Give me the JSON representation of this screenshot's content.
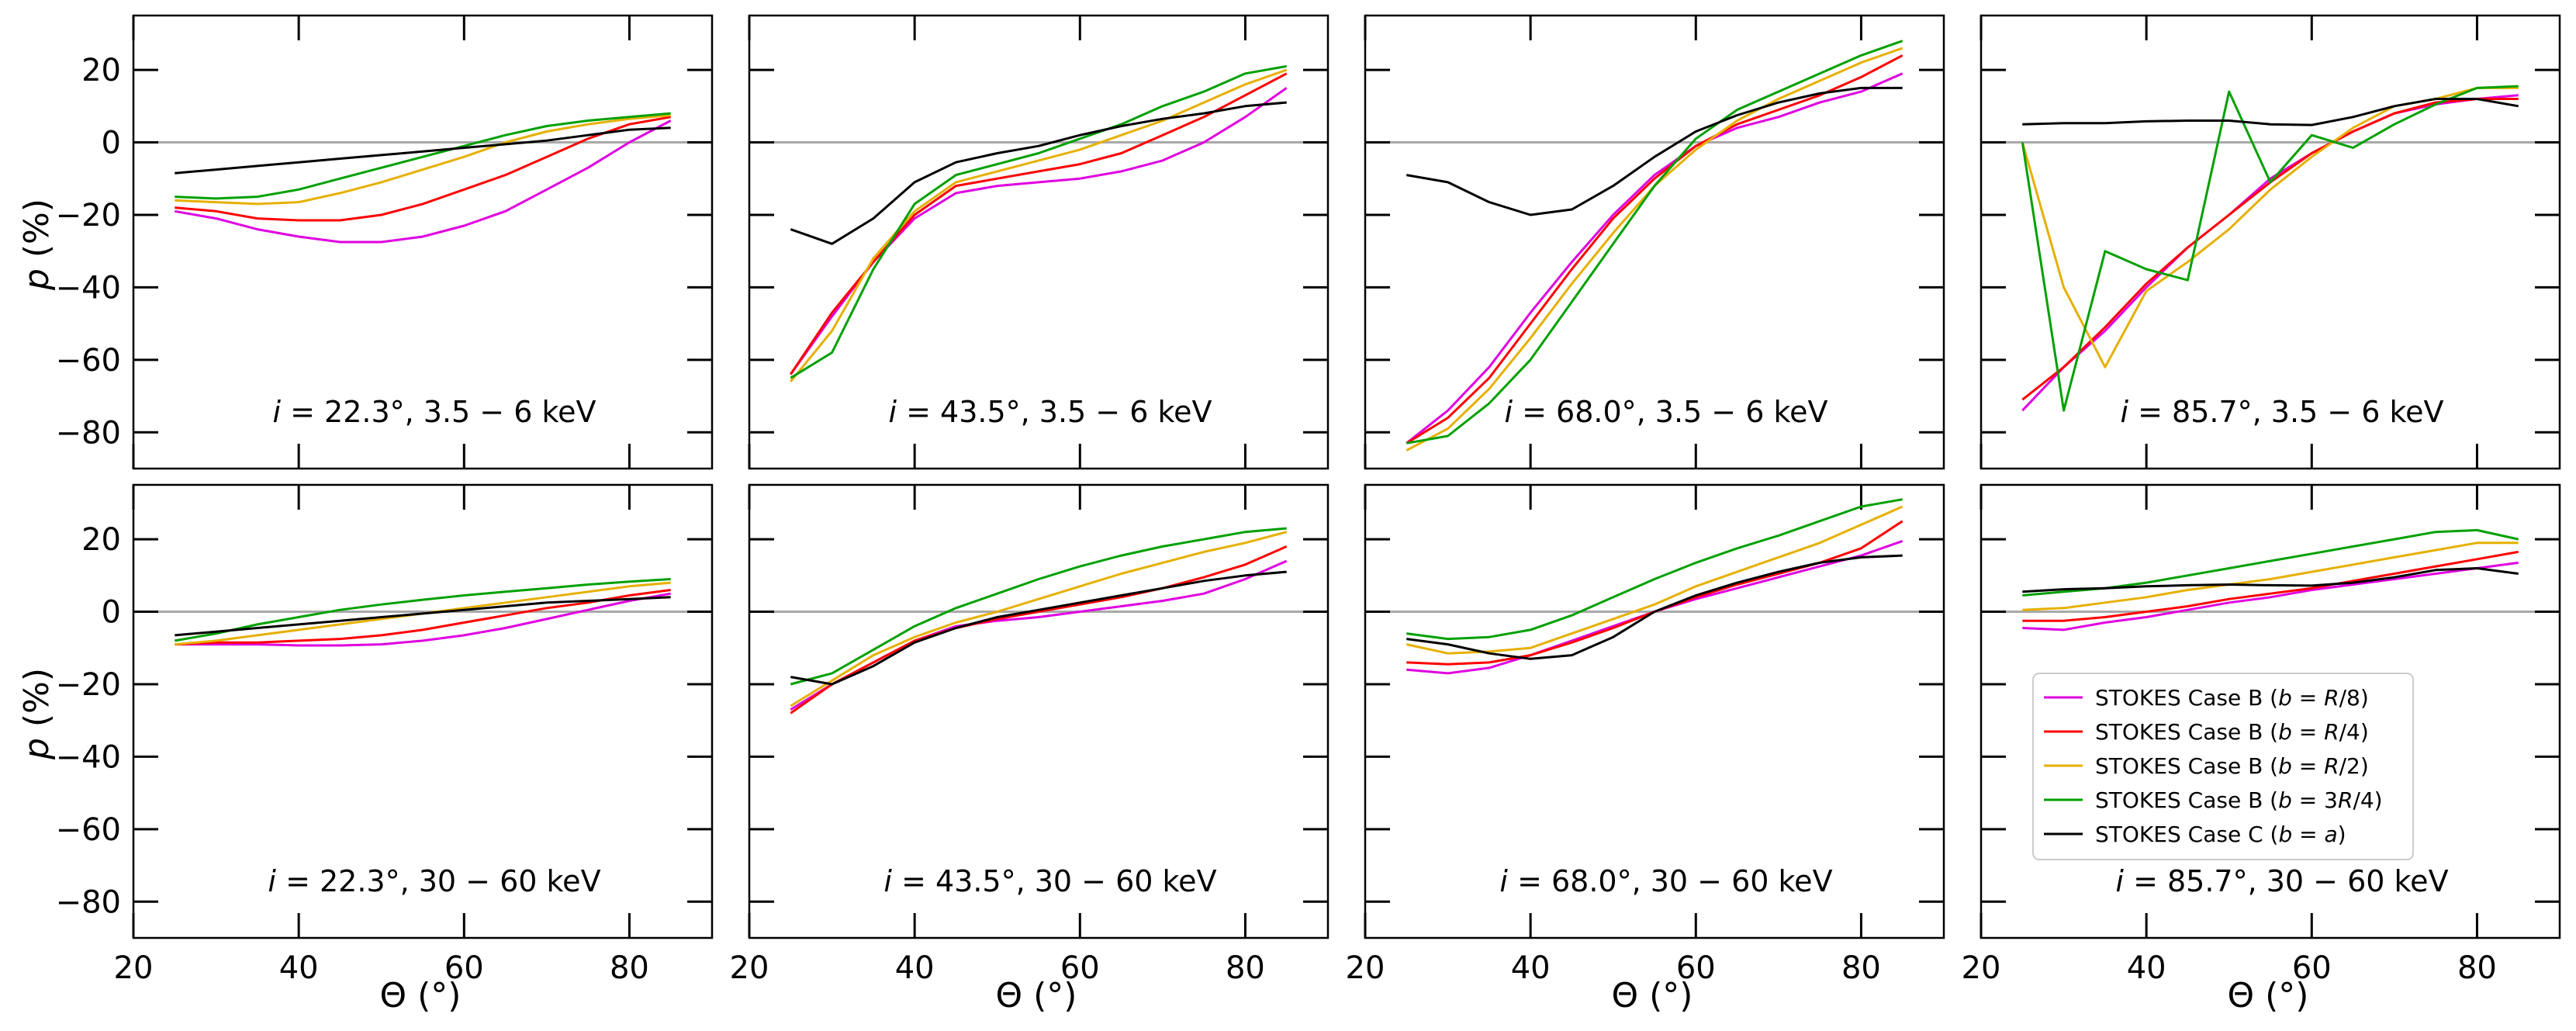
{
  "figure": {
    "ylabel": "p (%)",
    "xlabel": "Θ (°)"
  },
  "chart_data": {
    "type": "line",
    "x": [
      25,
      30,
      35,
      40,
      45,
      50,
      55,
      60,
      65,
      70,
      75,
      80,
      85
    ],
    "xlim": [
      20,
      90
    ],
    "ylim": [
      -90,
      35
    ],
    "xticks": [
      20,
      40,
      60,
      80
    ],
    "yticks": [
      -80,
      -60,
      -40,
      -20,
      0,
      20
    ],
    "xlabel": "Θ (°)",
    "ylabel": "p (%)",
    "series_meta": [
      {
        "name": "STOKES Case B (b = R/8)",
        "prefix": "STOKES Case B (",
        "var": "b",
        "eq": " = ",
        "val": "R",
        "suffix": "/8)",
        "color": "#e000e0"
      },
      {
        "name": "STOKES Case B (b = R/4)",
        "prefix": "STOKES Case B (",
        "var": "b",
        "eq": " = ",
        "val": "R",
        "suffix": "/4)",
        "color": "#ff0000"
      },
      {
        "name": "STOKES Case B (b = R/2)",
        "prefix": "STOKES Case B (",
        "var": "b",
        "eq": " = ",
        "val": "R",
        "suffix": "/2)",
        "color": "#e6b000"
      },
      {
        "name": "STOKES Case B (b = 3R/4)",
        "prefix": "STOKES Case B (",
        "var": "b",
        "eq": " = 3",
        "val": "R",
        "suffix": "/4)",
        "color": "#00a000"
      },
      {
        "name": "STOKES Case C (b = a)",
        "prefix": "STOKES Case C (",
        "var": "b",
        "eq": " = ",
        "val": "a",
        "suffix": ")",
        "color": "#000000"
      }
    ],
    "panels": [
      {
        "inclination": "22.3",
        "band": "3.5 − 6 keV",
        "label": "i = 22.3°, 3.5 − 6 keV",
        "series": [
          [
            -19,
            -21,
            -24,
            -26,
            -27.5,
            -27.5,
            -26,
            -23,
            -19,
            -13,
            -7,
            0,
            6
          ],
          [
            -18,
            -19,
            -21,
            -21.5,
            -21.5,
            -20,
            -17,
            -13,
            -9,
            -4,
            1,
            5,
            7
          ],
          [
            -16,
            -16.5,
            -17,
            -16.5,
            -14,
            -11,
            -7.5,
            -4,
            0,
            3,
            5,
            6.5,
            7.5
          ],
          [
            -15,
            -15.5,
            -15,
            -13,
            -10,
            -7,
            -4,
            -1,
            2,
            4.5,
            6,
            7,
            8
          ],
          [
            -8.5,
            -7.5,
            -6.5,
            -5.5,
            -4.5,
            -3.5,
            -2.5,
            -1.5,
            -0.5,
            0.5,
            2,
            3.5,
            4
          ]
        ]
      },
      {
        "inclination": "43.5",
        "band": "3.5 − 6 keV",
        "label": "i = 43.5°, 3.5 − 6 keV",
        "series": [
          [
            -64,
            -48,
            -33,
            -21,
            -14,
            -12,
            -11,
            -10,
            -8,
            -5,
            0,
            7,
            15
          ],
          [
            -64,
            -47,
            -33,
            -20,
            -12,
            -10,
            -8,
            -6,
            -3,
            2,
            7,
            13,
            19
          ],
          [
            -66,
            -52,
            -32,
            -19,
            -11,
            -8,
            -5,
            -2,
            2,
            6,
            11,
            16,
            20
          ],
          [
            -65,
            -58,
            -35,
            -17,
            -9,
            -6,
            -3,
            1,
            5,
            10,
            14,
            19,
            21
          ],
          [
            -24,
            -28,
            -21,
            -11,
            -5.5,
            -3,
            -1,
            2,
            4.5,
            6.5,
            8,
            10,
            11
          ]
        ]
      },
      {
        "inclination": "68.0",
        "band": "3.5 − 6 keV",
        "label": "i = 68.0°, 3.5 − 6 keV",
        "series": [
          [
            -83,
            -74,
            -62,
            -47,
            -33,
            -20,
            -9,
            -1,
            4,
            7,
            11,
            14,
            19
          ],
          [
            -83,
            -76,
            -65,
            -50,
            -35,
            -21,
            -10,
            -1,
            5,
            9,
            13,
            18,
            24
          ],
          [
            -85,
            -79,
            -68,
            -54,
            -39,
            -25,
            -12,
            -2,
            6,
            12,
            17,
            22,
            26
          ],
          [
            -83,
            -81,
            -72,
            -60,
            -44,
            -28,
            -12,
            1,
            9,
            14,
            19,
            24,
            28
          ],
          [
            -9,
            -11,
            -16.5,
            -20,
            -18.5,
            -12,
            -4,
            3,
            7.5,
            11,
            13.5,
            15,
            15
          ]
        ]
      },
      {
        "inclination": "85.7",
        "band": "3.5 − 6 keV",
        "label": "i = 85.7°, 3.5 − 6 keV",
        "series": [
          [
            -74,
            -62,
            -52,
            -40,
            -29,
            -20,
            -10,
            -3,
            3,
            8,
            10.5,
            12,
            13
          ],
          [
            -71,
            -62,
            -51,
            -39,
            -29,
            -20,
            -11,
            -3,
            3,
            8,
            11,
            12,
            12
          ],
          [
            0,
            -40,
            -62,
            -41,
            -33,
            -24,
            -13,
            -4,
            4,
            10,
            12,
            15,
            15
          ],
          [
            0,
            -74,
            -30,
            -35,
            -38,
            14,
            -11,
            2,
            -1.5,
            5,
            10.5,
            15,
            15.5
          ],
          [
            5,
            5.3,
            5.3,
            5.8,
            6,
            6,
            5,
            4.8,
            7,
            10,
            12,
            12,
            10
          ]
        ]
      },
      {
        "inclination": "22.3",
        "band": "30 − 60 keV",
        "label": "i = 22.3°, 30 − 60 keV",
        "series": [
          [
            -9,
            -9,
            -9,
            -9.3,
            -9.3,
            -9,
            -8,
            -6.5,
            -4.5,
            -2,
            0.5,
            3,
            5
          ],
          [
            -9,
            -8.5,
            -8.5,
            -8,
            -7.5,
            -6.5,
            -5,
            -3,
            -1,
            1,
            2.5,
            4.5,
            6
          ],
          [
            -9,
            -8,
            -6.5,
            -5,
            -3.5,
            -2,
            -0.5,
            1,
            2.5,
            4,
            5.5,
            7,
            8
          ],
          [
            -8,
            -6,
            -3.5,
            -1.5,
            0.5,
            2,
            3.3,
            4.5,
            5.5,
            6.5,
            7.5,
            8.3,
            9
          ],
          [
            -6.5,
            -5.5,
            -4.5,
            -3.5,
            -2.5,
            -1.5,
            -0.5,
            0.5,
            1.5,
            2.5,
            3,
            3.5,
            4
          ]
        ]
      },
      {
        "inclination": "43.5",
        "band": "30 − 60 keV",
        "label": "i = 43.5°, 30 − 60 keV",
        "series": [
          [
            -27,
            -20,
            -14,
            -8,
            -4,
            -2.5,
            -1.5,
            0,
            1.5,
            3,
            5,
            9,
            14
          ],
          [
            -28,
            -20,
            -14,
            -8,
            -4.5,
            -2,
            0,
            2,
            4,
            6.5,
            9.5,
            13,
            18
          ],
          [
            -26,
            -19,
            -12,
            -7,
            -3,
            0,
            3.5,
            7,
            10.5,
            13.5,
            16.5,
            19,
            22
          ],
          [
            -20,
            -17,
            -10.5,
            -4,
            1,
            5,
            9,
            12.5,
            15.5,
            18,
            20,
            22,
            23
          ],
          [
            -18,
            -20,
            -15,
            -8.5,
            -4.5,
            -1.5,
            0.5,
            2.5,
            4.5,
            6.5,
            8.5,
            10,
            11
          ]
        ]
      },
      {
        "inclination": "68.0",
        "band": "30 − 60 keV",
        "label": "i = 68.0°, 30 − 60 keV",
        "series": [
          [
            -16,
            -17,
            -15.5,
            -12,
            -8,
            -4,
            0,
            3.5,
            6.5,
            9.5,
            12.5,
            15.5,
            19.5
          ],
          [
            -14,
            -14.5,
            -14,
            -12,
            -8.5,
            -4.5,
            0,
            4,
            7.5,
            10.5,
            13.5,
            17.5,
            25
          ],
          [
            -9,
            -11.5,
            -11,
            -10,
            -6,
            -2,
            2,
            7,
            11,
            15,
            19,
            24,
            29
          ],
          [
            -6,
            -7.5,
            -7,
            -5,
            -1,
            4,
            9,
            13.5,
            17.5,
            21,
            25,
            29,
            31
          ],
          [
            -7.5,
            -9,
            -11.5,
            -13,
            -12,
            -7,
            0,
            4.5,
            8,
            11,
            13.5,
            15,
            15.5
          ]
        ]
      },
      {
        "inclination": "85.7",
        "band": "30 − 60 keV",
        "label": "i = 85.7°, 30 − 60 keV",
        "series": [
          [
            -4.5,
            -5,
            -3,
            -1.5,
            0.5,
            2.5,
            4,
            6,
            7.5,
            9,
            10.5,
            12,
            13.5
          ],
          [
            -2.5,
            -2.5,
            -1.5,
            0,
            1.5,
            3.5,
            5,
            6.5,
            8.5,
            10.5,
            12.5,
            14.5,
            16.5
          ],
          [
            0.5,
            1,
            2.5,
            4,
            6,
            7.5,
            9,
            11,
            13,
            15,
            17,
            19,
            19
          ],
          [
            4.5,
            5.5,
            6.5,
            8,
            10,
            12,
            14,
            16,
            18,
            20,
            22,
            22.5,
            20
          ],
          [
            5.5,
            6.2,
            6.5,
            7,
            7.3,
            7.5,
            7.3,
            7.2,
            8,
            9.5,
            11.5,
            12,
            10.5
          ]
        ]
      }
    ]
  }
}
